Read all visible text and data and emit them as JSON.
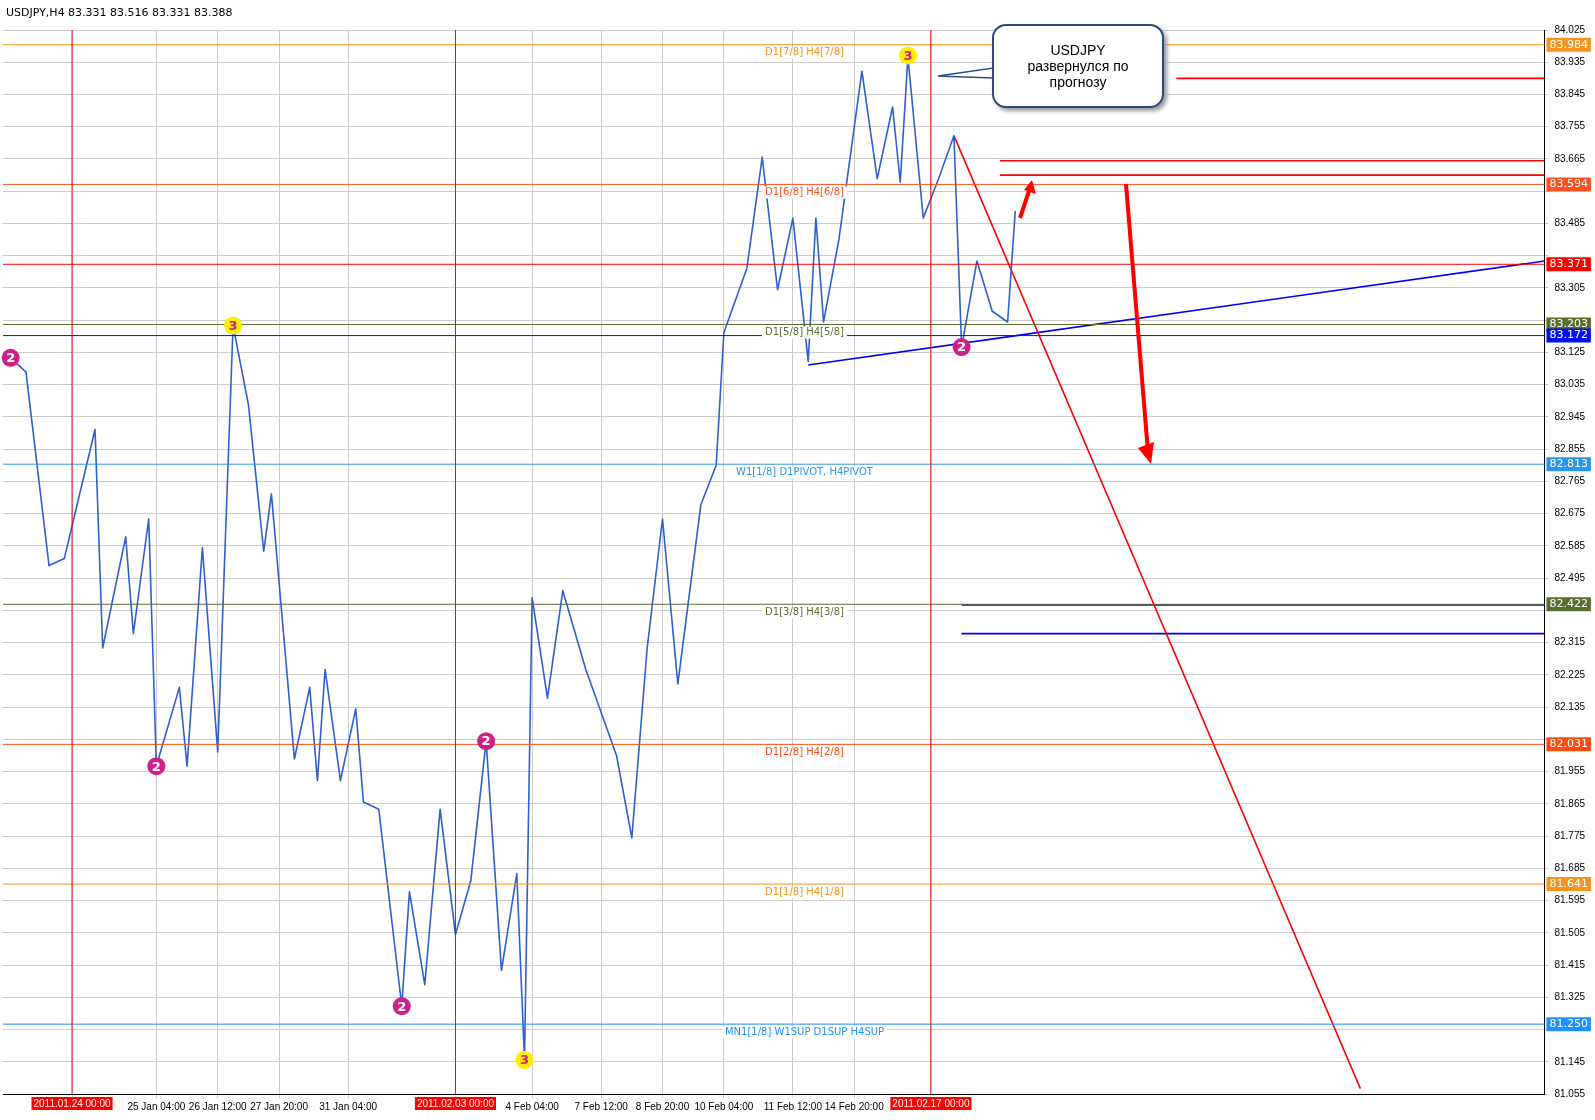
{
  "chart_data": {
    "type": "line",
    "title": "USDJPY,H4  83.331 83.516 83.331 83.388",
    "marker": "none",
    "grid": true,
    "categories": [
      null,
      null,
      null,
      null,
      null,
      null,
      null,
      null,
      null,
      "2011.01.24 00:00",
      null,
      null,
      null,
      null,
      null,
      null,
      null,
      null,
      null,
      null,
      "25 Jan 04:00",
      null,
      null,
      null,
      null,
      null,
      null,
      null,
      "26 Jan 12:00",
      null,
      null,
      null,
      null,
      null,
      null,
      null,
      "27 Jan 20:00",
      null,
      null,
      null,
      null,
      null,
      null,
      null,
      null,
      "31 Jan 04:00",
      null,
      null,
      null,
      null,
      null,
      null,
      null,
      null,
      null,
      null,
      null,
      null,
      null,
      "2011.02.03 00:00",
      null,
      null,
      null,
      null,
      null,
      null,
      null,
      null,
      null,
      "4 Feb 04:00",
      null,
      null,
      null,
      null,
      null,
      null,
      null,
      null,
      "7 Feb 12:00",
      null,
      null,
      null,
      null,
      null,
      null,
      null,
      "8 Feb 20:00",
      null,
      null,
      null,
      null,
      null,
      null,
      null,
      "10 Feb 04:00",
      null,
      null,
      null,
      null,
      null,
      null,
      null,
      null,
      "11 Feb 12:00",
      null,
      null,
      null,
      null,
      null,
      null,
      null,
      "14 Feb 20:00",
      null,
      null,
      null,
      null,
      null,
      null,
      null,
      null,
      null,
      "2011.02.17 00:00",
      null,
      null,
      null,
      null,
      null,
      null,
      null,
      null,
      null,
      null,
      null,
      null,
      null,
      null,
      null,
      null,
      null,
      null,
      null,
      null,
      null,
      null,
      null,
      null,
      null,
      null,
      null,
      null,
      null,
      null,
      null,
      null,
      null,
      null,
      null,
      null,
      null,
      null,
      null,
      null,
      null,
      null,
      null,
      null,
      null,
      null,
      null,
      null,
      null,
      null,
      null,
      null,
      null,
      null,
      null,
      null,
      null,
      null,
      null,
      null,
      null,
      null,
      null,
      null,
      null,
      null,
      null,
      null,
      null,
      null,
      null,
      null,
      null,
      null,
      null,
      null,
      null,
      null,
      null,
      null
    ],
    "ylim": [
      81.055,
      84.025
    ],
    "yticks": [
      81.055,
      81.145,
      {
        "value": 81.235,
        "label": null
      },
      81.325,
      81.415,
      81.505,
      81.595,
      81.685,
      81.775,
      81.865,
      81.955,
      {
        "value": 82.045,
        "label": null
      },
      82.135,
      82.225,
      82.315,
      {
        "value": 82.405,
        "label": null
      },
      82.495,
      82.585,
      82.675,
      82.765,
      82.855,
      82.945,
      83.035,
      83.125,
      {
        "value": 83.215,
        "label": null
      },
      83.305,
      {
        "value": 83.395,
        "label": null
      },
      83.485,
      {
        "value": 83.575,
        "label": null
      },
      83.665,
      83.755,
      83.845,
      83.935,
      84.025
    ],
    "series": [
      {
        "type": "line",
        "color": "#2f5fd0",
        "values": [
          null,
          83.11,
          null,
          83.07,
          null,
          null,
          82.53,
          null,
          82.55,
          null,
          null,
          null,
          82.91,
          82.3,
          null,
          null,
          82.61,
          82.34,
          null,
          82.66,
          81.97,
          null,
          null,
          82.19,
          81.97,
          null,
          82.58,
          null,
          82.01,
          null,
          83.2,
          null,
          82.98,
          null,
          82.57,
          82.73,
          null,
          null,
          81.99,
          null,
          82.19,
          81.93,
          82.24,
          null,
          81.93,
          null,
          82.13,
          81.87,
          null,
          81.85,
          null,
          null,
          81.3,
          81.62,
          null,
          81.36,
          null,
          81.85,
          null,
          81.5,
          null,
          81.65,
          null,
          82.04,
          null,
          81.4,
          null,
          81.67,
          81.15,
          82.44,
          null,
          82.16,
          null,
          82.46,
          null,
          null,
          82.24,
          null,
          null,
          null,
          82.0,
          null,
          81.77,
          null,
          82.3,
          null,
          82.66,
          null,
          82.2,
          null,
          null,
          82.7,
          null,
          82.81,
          83.18,
          null,
          null,
          83.36,
          null,
          83.67,
          null,
          83.3,
          null,
          83.5,
          null,
          83.1,
          83.5,
          83.21,
          null,
          83.44,
          null,
          null,
          83.91,
          null,
          83.61,
          null,
          83.81,
          83.6,
          83.95,
          null,
          83.5,
          null,
          83.61,
          null,
          83.73,
          83.14,
          null,
          83.38,
          null,
          83.24,
          null,
          83.21,
          83.52,
          null,
          null,
          null,
          null,
          null,
          null,
          null,
          null,
          null,
          null,
          null,
          null,
          null,
          null,
          null,
          null,
          null,
          null,
          null,
          null,
          null,
          null,
          null,
          null,
          null,
          null,
          null,
          null,
          null,
          null,
          null,
          null,
          null,
          null,
          null,
          null,
          null,
          null,
          null,
          null,
          null,
          null,
          null,
          null,
          null,
          null,
          null,
          null,
          null,
          null,
          null,
          null,
          null,
          null,
          null,
          null,
          null,
          null,
          null,
          null,
          null,
          null,
          null,
          null,
          null,
          null,
          null,
          null,
          null
        ]
      },
      {
        "type": "line",
        "color": "#ff0000",
        "values": [
          null,
          null,
          null,
          null,
          null,
          null,
          null,
          null,
          null,
          null,
          null,
          null,
          null,
          null,
          null,
          null,
          null,
          null,
          null,
          null,
          null,
          null,
          null,
          null,
          null,
          null,
          null,
          null,
          null,
          null,
          null,
          null,
          null,
          null,
          null,
          null,
          null,
          null,
          null,
          null,
          null,
          null,
          null,
          null,
          null,
          null,
          null,
          null,
          null,
          null,
          null,
          null,
          null,
          null,
          null,
          null,
          null,
          null,
          null,
          null,
          null,
          null,
          null,
          null,
          null,
          null,
          null,
          null,
          null,
          null,
          null,
          null,
          null,
          null,
          null,
          null,
          null,
          null,
          null,
          null,
          null,
          null,
          null,
          null,
          null,
          null,
          null,
          null,
          null,
          null,
          null,
          null,
          null,
          null,
          null,
          null,
          null,
          null,
          null,
          null,
          null,
          null,
          null,
          null,
          null,
          null,
          null,
          null,
          null,
          null,
          null,
          null,
          null,
          null,
          null,
          null,
          null,
          null,
          null,
          null,
          null,
          null,
          null,
          null,
          83.73,
          null,
          null,
          null,
          null,
          null,
          null,
          null,
          null,
          null,
          null,
          null,
          null,
          null,
          null,
          null,
          null,
          null,
          null,
          null,
          null,
          null,
          null,
          null,
          null,
          null,
          null,
          null,
          null,
          null,
          null,
          null,
          null,
          null,
          null,
          null,
          null,
          null,
          null,
          null,
          null,
          null,
          null,
          null,
          null,
          null,
          null,
          null,
          null,
          null,
          null,
          null,
          null,
          81.07,
          null,
          null,
          null,
          null,
          null,
          null,
          null,
          null,
          null,
          null,
          null,
          null,
          null,
          null,
          null,
          null,
          null,
          null,
          null,
          null,
          null,
          null,
          null,
          null
        ]
      },
      {
        "type": "line",
        "color": "#0000ee",
        "values": [
          null,
          null,
          null,
          null,
          null,
          null,
          null,
          null,
          null,
          null,
          null,
          null,
          null,
          null,
          null,
          null,
          null,
          null,
          null,
          null,
          null,
          null,
          null,
          null,
          null,
          null,
          null,
          null,
          null,
          null,
          null,
          null,
          null,
          null,
          null,
          null,
          null,
          null,
          null,
          null,
          null,
          null,
          null,
          null,
          null,
          null,
          null,
          null,
          null,
          null,
          null,
          null,
          null,
          null,
          null,
          null,
          null,
          null,
          null,
          null,
          null,
          null,
          null,
          null,
          null,
          null,
          null,
          null,
          null,
          null,
          null,
          null,
          null,
          null,
          null,
          null,
          null,
          null,
          null,
          null,
          null,
          null,
          null,
          null,
          null,
          null,
          null,
          null,
          null,
          null,
          null,
          null,
          null,
          null,
          null,
          null,
          null,
          null,
          null,
          null,
          null,
          null,
          null,
          null,
          null,
          83.09,
          null,
          null,
          null,
          null,
          null,
          null,
          null,
          null,
          null,
          null,
          null,
          null,
          null,
          null,
          null,
          null,
          null,
          null,
          null,
          null,
          null,
          null,
          null,
          null,
          null,
          null,
          null,
          null,
          null,
          null,
          null,
          null,
          null,
          null,
          null,
          null,
          null,
          null,
          null,
          null,
          null,
          null,
          null,
          null,
          null,
          null,
          null,
          null,
          null,
          null,
          null,
          null,
          null,
          null,
          null,
          null,
          null,
          null,
          null,
          null,
          null,
          null,
          null,
          null,
          null,
          null,
          null,
          null,
          null,
          null,
          null,
          null,
          null,
          null,
          null,
          null,
          null,
          null,
          null,
          null,
          null,
          null,
          null,
          null,
          null,
          null,
          null,
          null,
          null,
          null,
          null,
          null,
          null,
          null,
          null,
          83.38
        ]
      },
      {
        "type": "line",
        "color": "#ff0000",
        "values": [
          null,
          null,
          null,
          null,
          null,
          null,
          null,
          null,
          null,
          null,
          null,
          null,
          null,
          null,
          null,
          null,
          null,
          null,
          null,
          null,
          null,
          null,
          null,
          null,
          null,
          null,
          null,
          null,
          null,
          null,
          null,
          null,
          null,
          null,
          null,
          null,
          null,
          null,
          null,
          null,
          null,
          null,
          null,
          null,
          null,
          null,
          null,
          null,
          null,
          null,
          null,
          null,
          null,
          null,
          null,
          null,
          null,
          null,
          null,
          null,
          null,
          null,
          null,
          null,
          null,
          null,
          null,
          null,
          null,
          null,
          null,
          null,
          null,
          null,
          null,
          null,
          null,
          null,
          null,
          null,
          null,
          null,
          null,
          null,
          null,
          null,
          null,
          null,
          null,
          null,
          null,
          null,
          null,
          null,
          null,
          null,
          null,
          null,
          null,
          null,
          null,
          null,
          null,
          null,
          null,
          null,
          null,
          null,
          null,
          null,
          null,
          null,
          null,
          null,
          null,
          null,
          null,
          null,
          null,
          null,
          null,
          null,
          null,
          null,
          null,
          null,
          null,
          null,
          null,
          null,
          null,
          null,
          null,
          null,
          null,
          null,
          null,
          null,
          null,
          null,
          null,
          null,
          null,
          null,
          null,
          null,
          null,
          null,
          null,
          null,
          null,
          null,
          null,
          83.89,
          null,
          null,
          null,
          null,
          null,
          null,
          null,
          null,
          null,
          null,
          null,
          null,
          null,
          null,
          null,
          null,
          null,
          null,
          null,
          null,
          null,
          null,
          null,
          null,
          null,
          null,
          null,
          null,
          null,
          null,
          null,
          null,
          null,
          null,
          null,
          null,
          null,
          null,
          null,
          null,
          null,
          null,
          null,
          null,
          null,
          null,
          null,
          83.89
        ]
      },
      {
        "type": "line",
        "color": "#ff0000",
        "values": [
          null,
          null,
          null,
          null,
          null,
          null,
          null,
          null,
          null,
          null,
          null,
          null,
          null,
          null,
          null,
          null,
          null,
          null,
          null,
          null,
          null,
          null,
          null,
          null,
          null,
          null,
          null,
          null,
          null,
          null,
          null,
          null,
          null,
          null,
          null,
          null,
          null,
          null,
          null,
          null,
          null,
          null,
          null,
          null,
          null,
          null,
          null,
          null,
          null,
          null,
          null,
          null,
          null,
          null,
          null,
          null,
          null,
          null,
          null,
          null,
          null,
          null,
          null,
          null,
          null,
          null,
          null,
          null,
          null,
          null,
          null,
          null,
          null,
          null,
          null,
          null,
          null,
          null,
          null,
          null,
          null,
          null,
          null,
          null,
          null,
          null,
          null,
          null,
          null,
          null,
          null,
          null,
          null,
          null,
          null,
          null,
          null,
          null,
          null,
          null,
          null,
          null,
          null,
          null,
          null,
          null,
          null,
          null,
          null,
          null,
          null,
          null,
          null,
          null,
          null,
          null,
          null,
          null,
          null,
          null,
          null,
          null,
          null,
          null,
          null,
          null,
          null,
          null,
          null,
          null,
          83.66,
          null,
          null,
          null,
          null,
          null,
          null,
          null,
          null,
          null,
          null,
          null,
          null,
          null,
          null,
          null,
          null,
          null,
          null,
          null,
          null,
          null,
          null,
          null,
          null,
          null,
          null,
          null,
          null,
          null,
          null,
          null,
          null,
          null,
          null,
          null,
          null,
          null,
          null,
          null,
          null,
          null,
          null,
          null,
          null,
          null,
          null,
          null,
          null,
          null,
          null,
          null,
          null,
          null,
          null,
          null,
          null,
          null,
          null,
          null,
          null,
          null,
          null,
          null,
          null,
          null,
          null,
          null,
          null,
          null,
          null,
          83.66
        ]
      },
      {
        "type": "line",
        "color": "#ff0000",
        "values": [
          null,
          null,
          null,
          null,
          null,
          null,
          null,
          null,
          null,
          null,
          null,
          null,
          null,
          null,
          null,
          null,
          null,
          null,
          null,
          null,
          null,
          null,
          null,
          null,
          null,
          null,
          null,
          null,
          null,
          null,
          null,
          null,
          null,
          null,
          null,
          null,
          null,
          null,
          null,
          null,
          null,
          null,
          null,
          null,
          null,
          null,
          null,
          null,
          null,
          null,
          null,
          null,
          null,
          null,
          null,
          null,
          null,
          null,
          null,
          null,
          null,
          null,
          null,
          null,
          null,
          null,
          null,
          null,
          null,
          null,
          null,
          null,
          null,
          null,
          null,
          null,
          null,
          null,
          null,
          null,
          null,
          null,
          null,
          null,
          null,
          null,
          null,
          null,
          null,
          null,
          null,
          null,
          null,
          null,
          null,
          null,
          null,
          null,
          null,
          null,
          null,
          null,
          null,
          null,
          null,
          null,
          null,
          null,
          null,
          null,
          null,
          null,
          null,
          null,
          null,
          null,
          null,
          null,
          null,
          null,
          null,
          null,
          null,
          null,
          null,
          null,
          null,
          null,
          null,
          null,
          83.62,
          null,
          null,
          null,
          null,
          null,
          null,
          null,
          null,
          null,
          null,
          null,
          null,
          null,
          null,
          null,
          null,
          null,
          null,
          null,
          null,
          null,
          null,
          null,
          null,
          null,
          null,
          null,
          null,
          null,
          null,
          null,
          null,
          null,
          null,
          null,
          null,
          null,
          null,
          null,
          null,
          null,
          null,
          null,
          null,
          null,
          null,
          null,
          null,
          null,
          null,
          null,
          null,
          null,
          null,
          null,
          null,
          null,
          null,
          null,
          null,
          null,
          null,
          null,
          null,
          null,
          null,
          null,
          null,
          null,
          null,
          83.62
        ]
      },
      {
        "type": "line",
        "color": "#0000ee",
        "values": [
          null,
          null,
          null,
          null,
          null,
          null,
          null,
          null,
          null,
          null,
          null,
          null,
          null,
          null,
          null,
          null,
          null,
          null,
          null,
          null,
          null,
          null,
          null,
          null,
          null,
          null,
          null,
          null,
          null,
          null,
          null,
          null,
          null,
          null,
          null,
          null,
          null,
          null,
          null,
          null,
          null,
          null,
          null,
          null,
          null,
          null,
          null,
          null,
          null,
          null,
          null,
          null,
          null,
          null,
          null,
          null,
          null,
          null,
          null,
          null,
          null,
          null,
          null,
          null,
          null,
          null,
          null,
          null,
          null,
          null,
          null,
          null,
          null,
          null,
          null,
          null,
          null,
          null,
          null,
          null,
          null,
          null,
          null,
          null,
          null,
          null,
          null,
          null,
          null,
          null,
          null,
          null,
          null,
          null,
          null,
          null,
          null,
          null,
          null,
          null,
          null,
          null,
          null,
          null,
          null,
          null,
          null,
          null,
          null,
          null,
          null,
          null,
          null,
          null,
          null,
          null,
          null,
          null,
          null,
          null,
          null,
          null,
          null,
          null,
          null,
          82.42,
          null,
          null,
          null,
          null,
          null,
          null,
          null,
          null,
          null,
          null,
          null,
          null,
          null,
          null,
          null,
          null,
          null,
          null,
          null,
          null,
          null,
          null,
          null,
          null,
          null,
          null,
          null,
          null,
          null,
          null,
          null,
          null,
          null,
          null,
          null,
          null,
          null,
          null,
          null,
          null,
          null,
          null,
          null,
          null,
          null,
          null,
          null,
          null,
          null,
          null,
          null,
          null,
          null,
          null,
          null,
          null,
          null,
          null,
          null,
          null,
          null,
          null,
          null,
          null,
          null,
          null,
          null,
          null,
          null,
          null,
          null,
          null,
          null,
          null,
          null,
          82.42
        ]
      },
      {
        "type": "line",
        "color": "#0000ee",
        "values": [
          null,
          null,
          null,
          null,
          null,
          null,
          null,
          null,
          null,
          null,
          null,
          null,
          null,
          null,
          null,
          null,
          null,
          null,
          null,
          null,
          null,
          null,
          null,
          null,
          null,
          null,
          null,
          null,
          null,
          null,
          null,
          null,
          null,
          null,
          null,
          null,
          null,
          null,
          null,
          null,
          null,
          null,
          null,
          null,
          null,
          null,
          null,
          null,
          null,
          null,
          null,
          null,
          null,
          null,
          null,
          null,
          null,
          null,
          null,
          null,
          null,
          null,
          null,
          null,
          null,
          null,
          null,
          null,
          null,
          null,
          null,
          null,
          null,
          null,
          null,
          null,
          null,
          null,
          null,
          null,
          null,
          null,
          null,
          null,
          null,
          null,
          null,
          null,
          null,
          null,
          null,
          null,
          null,
          null,
          null,
          null,
          null,
          null,
          null,
          null,
          null,
          null,
          null,
          null,
          null,
          null,
          null,
          null,
          null,
          null,
          null,
          null,
          null,
          null,
          null,
          null,
          null,
          null,
          null,
          null,
          null,
          null,
          null,
          null,
          null,
          82.34,
          null,
          null,
          null,
          null,
          null,
          null,
          null,
          null,
          null,
          null,
          null,
          null,
          null,
          null,
          null,
          null,
          null,
          null,
          null,
          null,
          null,
          null,
          null,
          null,
          null,
          null,
          null,
          null,
          null,
          null,
          null,
          null,
          null,
          null,
          null,
          null,
          null,
          null,
          null,
          null,
          null,
          null,
          null,
          null,
          null,
          null,
          null,
          null,
          null,
          null,
          null,
          null,
          null,
          null,
          null,
          null,
          null,
          null,
          null,
          null,
          null,
          null,
          null,
          null,
          null,
          null,
          null,
          null,
          null,
          null,
          null,
          null,
          null,
          null,
          null,
          82.34
        ]
      }
    ],
    "ref_lines": [
      {
        "axis": "y",
        "value": 83.984,
        "label": "83.984",
        "color": "#f7941d"
      },
      {
        "axis": "y",
        "value": 83.594,
        "label": "83.594",
        "color": "#ff5020"
      },
      {
        "axis": "y",
        "value": 83.371,
        "label": "83.371",
        "color": "#ff0000"
      },
      {
        "axis": "y",
        "value": 83.203,
        "label": "83.203",
        "color": "#5a6e2e"
      },
      {
        "axis": "y",
        "value": 83.172,
        "label": "83.172",
        "color": "#0010ee"
      },
      {
        "axis": "y",
        "value": 82.813,
        "label": "82.813",
        "color": "#2b95e8"
      },
      {
        "axis": "y",
        "value": 82.422,
        "label": "82.422",
        "color": "#5a6e2e"
      },
      {
        "axis": "y",
        "value": 82.031,
        "label": "82.031",
        "color": "#ff4a10"
      },
      {
        "axis": "y",
        "value": 81.641,
        "label": "81.641",
        "color": "#f7941d"
      },
      {
        "axis": "y",
        "value": 81.25,
        "label": "81.250",
        "color": "#1e90ff"
      },
      {
        "axis": "x",
        "value": "2011.01.24 00:00",
        "color": "#ff0000"
      },
      {
        "axis": "x",
        "value": "2011.02.03 00:00",
        "color": "#ff0000"
      },
      {
        "axis": "x",
        "value": "2011.02.17 00:00",
        "color": "#ff0000"
      }
    ],
    "annotations": [
      "USDJPY развернулся по прогнозу",
      {
        "text": "D1[7/8] H4[7/8]",
        "y": 83.984
      },
      {
        "text": "D1[6/8] H4[6/8]",
        "y": 83.594
      },
      {
        "text": "D1[5/8] H4[5/8]",
        "y": 83.203
      },
      {
        "text": "W1[1/8] D1PIVOT, H4PIVOT",
        "y": 82.813
      },
      {
        "text": "D1[3/8] H4[3/8]",
        "y": 82.422
      },
      {
        "text": "D1[2/8] H4[2/8]",
        "y": 82.031
      },
      {
        "text": "D1[1/8] H4[1/8]",
        "y": 81.641
      },
      {
        "text": "MN1[1/8] W1SUP D1SUP H4SUP",
        "y": 81.25
      },
      {
        "text": "3",
        "y": 83.2
      },
      {
        "text": "3",
        "y": 83.954
      },
      {
        "text": "3",
        "y": 81.15
      },
      {
        "text": "2",
        "y": 83.11
      },
      {
        "text": "2",
        "y": 81.97
      },
      {
        "text": "2",
        "y": 81.3
      },
      {
        "text": "2",
        "y": 82.04
      },
      {
        "text": "2",
        "y": 83.14
      }
    ]
  }
}
